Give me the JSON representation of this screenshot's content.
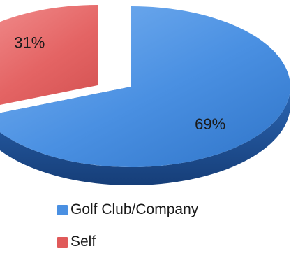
{
  "chart_data": {
    "type": "pie",
    "style": "3d-exploded",
    "labels": [
      "Golf Club/Company",
      "Self"
    ],
    "values": [
      69,
      31
    ],
    "value_labels": [
      "69%",
      "31%"
    ],
    "colors": [
      "#4a90e2",
      "#e05a5a"
    ],
    "legend_position": "bottom"
  }
}
